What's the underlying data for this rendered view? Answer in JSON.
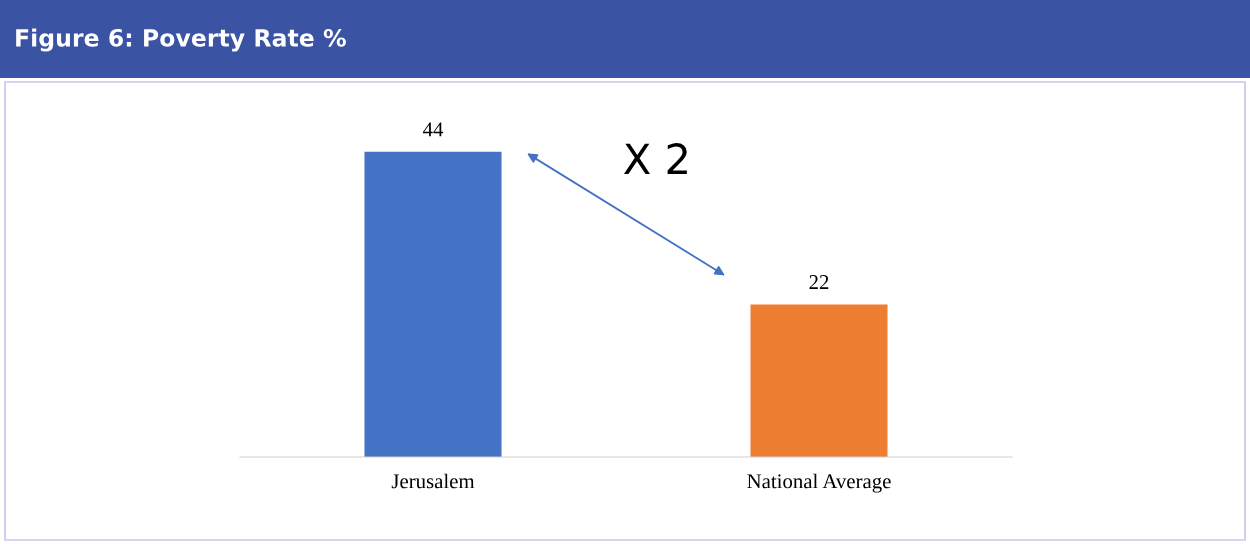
{
  "chart_data": {
    "type": "bar",
    "title": "Figure 6: Poverty Rate %",
    "categories": [
      "Jerusalem",
      "National Average"
    ],
    "values": [
      44,
      22
    ],
    "colors": [
      "#4472c4",
      "#ed7d31"
    ],
    "data_labels": true,
    "annotations": [
      "X 2"
    ]
  }
}
